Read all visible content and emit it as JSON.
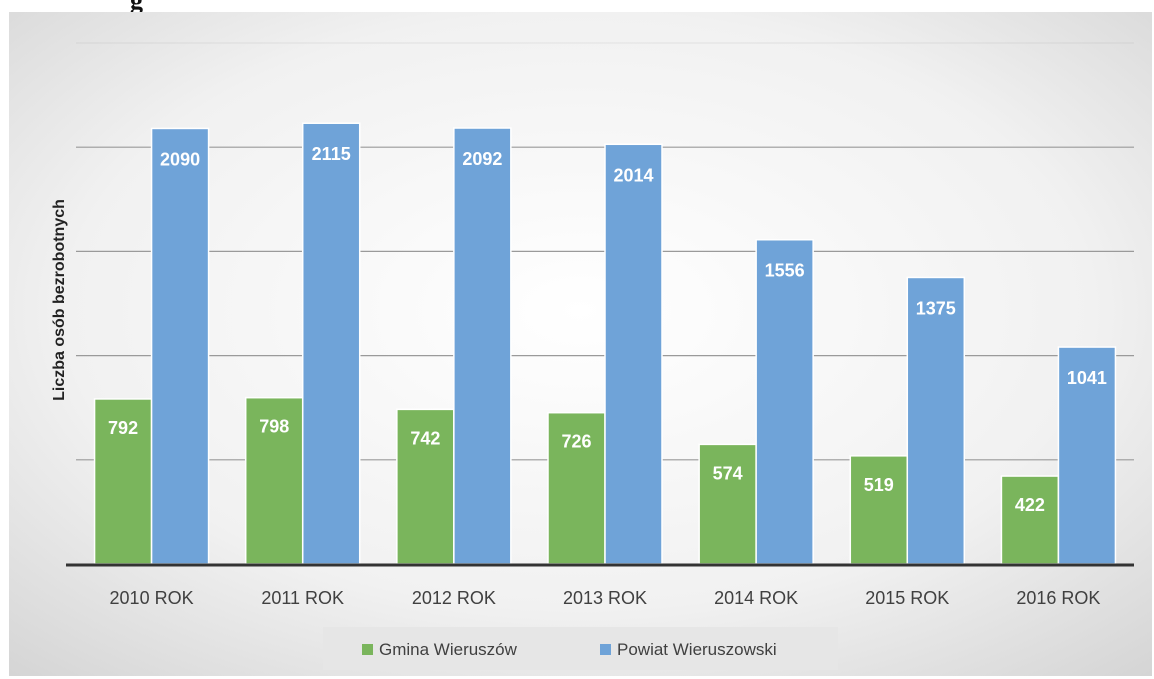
{
  "header_fragment": "g",
  "chart_data": {
    "type": "bar",
    "categories": [
      "2010 ROK",
      "2011 ROK",
      "2012 ROK",
      "2013 ROK",
      "2014 ROK",
      "2015 ROK",
      "2016 ROK"
    ],
    "series": [
      {
        "name": "Gmina Wieruszów",
        "values": [
          792,
          798,
          742,
          726,
          574,
          519,
          422
        ],
        "color": "#7ab55c"
      },
      {
        "name": "Powiat Wieruszowski",
        "values": [
          2090,
          2115,
          2092,
          2014,
          1556,
          1375,
          1041
        ],
        "color": "#6fa3d8"
      }
    ],
    "title": "",
    "xlabel": "",
    "ylabel": "Liczba osób bezrobotnych",
    "ylim": [
      0,
      2500
    ],
    "grid": true,
    "legend": "bottom",
    "data_labels": true,
    "gridline_color": "#9a9a9a",
    "axis_color": "#333333",
    "label_color": "#ffffff",
    "tick_label_color": "#404040"
  }
}
